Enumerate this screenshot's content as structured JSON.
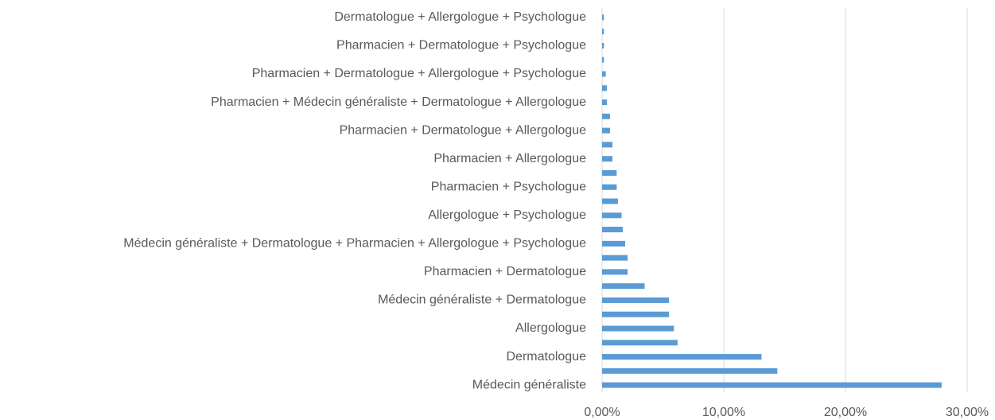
{
  "chart_data": {
    "type": "barh",
    "categories": [
      "Médecin généraliste",
      null,
      "Dermatologue",
      null,
      "Allergologue",
      null,
      "Médecin généraliste + Dermatologue",
      null,
      "Pharmacien + Dermatologue",
      null,
      "Médecin généraliste + Dermatologue + Pharmacien + Allergologue + Psychologue",
      null,
      "Allergologue + Psychologue",
      null,
      "Pharmacien + Psychologue",
      null,
      "Pharmacien + Allergologue",
      null,
      "Pharmacien + Dermatologue + Allergologue",
      null,
      "Pharmacien + Médecin généraliste + Dermatologue + Allergologue",
      null,
      "Pharmacien + Dermatologue + Allergologue + Psychologue",
      null,
      "Pharmacien + Dermatologue + Psychologue",
      null,
      "Dermatologue + Allergologue + Psychologue"
    ],
    "values": [
      27.9,
      14.4,
      13.1,
      6.2,
      5.9,
      5.5,
      5.5,
      3.5,
      2.1,
      2.1,
      1.9,
      1.7,
      1.6,
      1.3,
      1.2,
      1.2,
      0.85,
      0.85,
      0.65,
      0.65,
      0.4,
      0.4,
      0.3,
      0.15,
      0.15,
      0.15,
      0.15
    ],
    "color": "#5b9bd5",
    "xlim": [
      0,
      30
    ],
    "xticks": [
      {
        "value": 0,
        "label": "0,00%"
      },
      {
        "value": 10,
        "label": "10,00%"
      },
      {
        "value": 20,
        "label": "20,00%"
      },
      {
        "value": 30,
        "label": "30,00%"
      }
    ],
    "grid": true
  }
}
